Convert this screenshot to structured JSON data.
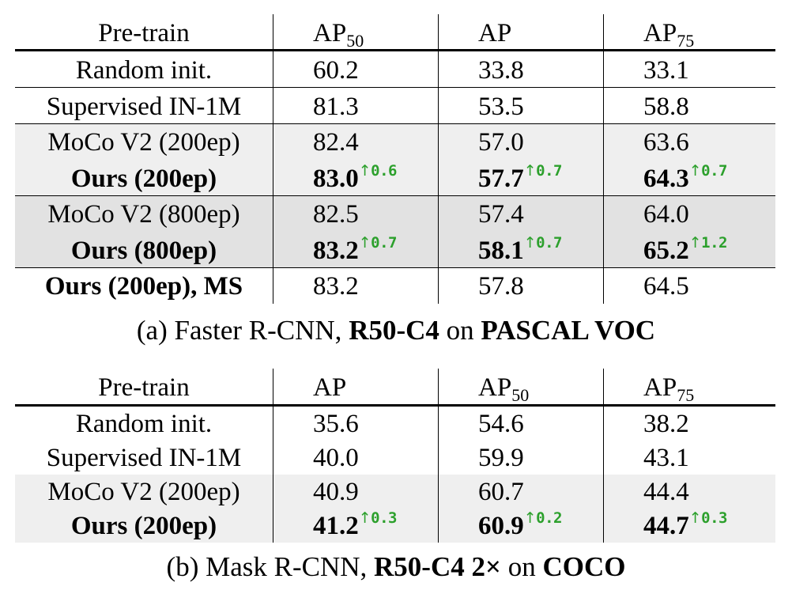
{
  "table_a": {
    "header": [
      "Pre-train",
      "AP",
      "AP",
      "AP"
    ],
    "header_subscripts": [
      "",
      "50",
      "",
      "75"
    ],
    "rows": [
      {
        "name": "Random init.",
        "bold": false,
        "values": [
          "60.2",
          "33.8",
          "33.1"
        ],
        "gains": [
          "",
          "",
          ""
        ]
      },
      {
        "name": "Supervised IN-1M",
        "bold": false,
        "values": [
          "81.3",
          "53.5",
          "58.8"
        ],
        "gains": [
          "",
          "",
          ""
        ]
      },
      {
        "name": "MoCo V2 (200ep)",
        "bold": false,
        "values": [
          "82.4",
          "57.0",
          "63.6"
        ],
        "gains": [
          "",
          "",
          ""
        ]
      },
      {
        "name": "Ours (200ep)",
        "bold": true,
        "values": [
          "83.0",
          "57.7",
          "64.3"
        ],
        "gains": [
          "0.6",
          "0.7",
          "0.7"
        ]
      },
      {
        "name": "MoCo V2 (800ep)",
        "bold": false,
        "values": [
          "82.5",
          "57.4",
          "64.0"
        ],
        "gains": [
          "",
          "",
          ""
        ]
      },
      {
        "name": "Ours (800ep)",
        "bold": true,
        "values": [
          "83.2",
          "58.1",
          "65.2"
        ],
        "gains": [
          "0.7",
          "0.7",
          "1.2"
        ]
      },
      {
        "name": "Ours (200ep), MS",
        "bold": true,
        "values": [
          "83.2",
          "57.8",
          "64.5"
        ],
        "gains": [
          "",
          "",
          ""
        ]
      }
    ],
    "caption_plain_1": "(a) Faster R-CNN, ",
    "caption_bold_1": "R50-C4",
    "caption_plain_2": " on ",
    "caption_bold_2": "PASCAL VOC"
  },
  "table_b": {
    "header": [
      "Pre-train",
      "AP",
      "AP",
      "AP"
    ],
    "header_subscripts": [
      "",
      "",
      "50",
      "75"
    ],
    "rows": [
      {
        "name": "Random init.",
        "bold": false,
        "values": [
          "35.6",
          "54.6",
          "38.2"
        ],
        "gains": [
          "",
          "",
          ""
        ]
      },
      {
        "name": "Supervised IN-1M",
        "bold": false,
        "values": [
          "40.0",
          "59.9",
          "43.1"
        ],
        "gains": [
          "",
          "",
          ""
        ]
      },
      {
        "name": "MoCo V2 (200ep)",
        "bold": false,
        "values": [
          "40.9",
          "60.7",
          "44.4"
        ],
        "gains": [
          "",
          "",
          ""
        ]
      },
      {
        "name": "Ours (200ep)",
        "bold": true,
        "values": [
          "41.2",
          "60.9",
          "44.7"
        ],
        "gains": [
          "0.3",
          "0.2",
          "0.3"
        ]
      }
    ],
    "caption_plain_1": "(b) Mask R-CNN, ",
    "caption_bold_1": "R50-C4 2×",
    "caption_plain_2": " on ",
    "caption_bold_2": "COCO"
  },
  "gain_arrow": "↑",
  "colors": {
    "gain": "#2ca02c",
    "shade_light": "#efefef",
    "shade_dark": "#e2e2e2"
  }
}
